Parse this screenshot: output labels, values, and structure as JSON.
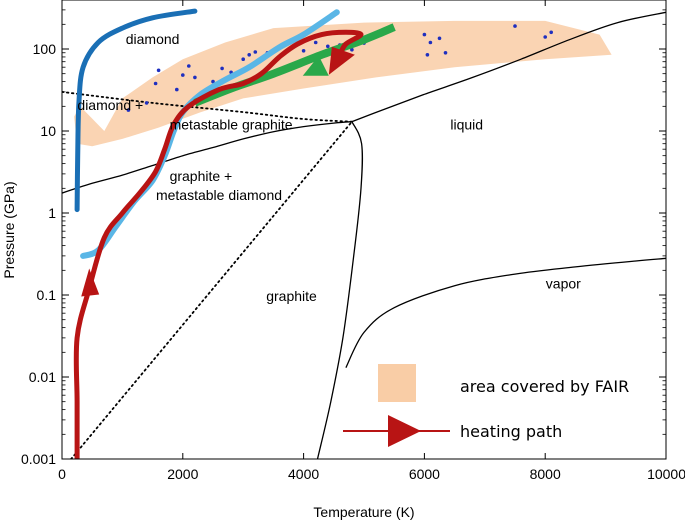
{
  "chart_data": {
    "type": "line",
    "title": "",
    "xlabel": "Temperature (K)",
    "ylabel": "Pressure (GPa)",
    "xlim": [
      0,
      10000
    ],
    "ylim": [
      0.001,
      300
    ],
    "y_scale": "log",
    "grid": false,
    "x_ticks": [
      {
        "value": 0,
        "label": "0"
      },
      {
        "value": 2000,
        "label": "2000"
      },
      {
        "value": 4000,
        "label": "4000"
      },
      {
        "value": 6000,
        "label": "6000"
      },
      {
        "value": 8000,
        "label": "8000"
      },
      {
        "value": 10000,
        "label": "10000"
      }
    ],
    "y_ticks": [
      {
        "value": 0.001,
        "label": "0.001"
      },
      {
        "value": 0.01,
        "label": "0.01"
      },
      {
        "value": 0.1,
        "label": "0.1"
      },
      {
        "value": 1,
        "label": "1"
      },
      {
        "value": 10,
        "label": "10"
      },
      {
        "value": 100,
        "label": "100"
      }
    ],
    "region_labels": [
      {
        "text": "diamond",
        "x": 1500,
        "y": 115
      },
      {
        "text": "diamond +",
        "x": 800,
        "y": 18
      },
      {
        "text": "metastable graphite",
        "x": 2800,
        "y": 10.5
      },
      {
        "text": "graphite +",
        "x": 2300,
        "y": 2.45
      },
      {
        "text": "metastable diamond",
        "x": 2600,
        "y": 1.45
      },
      {
        "text": "liquid",
        "x": 6700,
        "y": 10.5
      },
      {
        "text": "graphite",
        "x": 3800,
        "y": 0.085
      },
      {
        "text": "vapor",
        "x": 8300,
        "y": 0.12
      }
    ],
    "fair_area": {
      "color": "#f9cda6",
      "polygon": [
        [
          700,
          10
        ],
        [
          1000,
          25
        ],
        [
          1500,
          45
        ],
        [
          2000,
          75
        ],
        [
          2700,
          120
        ],
        [
          3500,
          180
        ],
        [
          5000,
          210
        ],
        [
          6500,
          220
        ],
        [
          8000,
          220
        ],
        [
          8900,
          150
        ],
        [
          9100,
          85
        ],
        [
          8000,
          75
        ],
        [
          6500,
          60
        ],
        [
          5200,
          45
        ],
        [
          4000,
          33
        ],
        [
          3000,
          25
        ],
        [
          2300,
          17
        ],
        [
          1600,
          11
        ],
        [
          1000,
          8
        ],
        [
          500,
          6.5
        ],
        [
          250,
          7
        ],
        [
          200,
          15
        ],
        [
          300,
          20
        ]
      ]
    },
    "boundaries": [
      {
        "name": "",
        "style": "solid",
        "points": [
          [
            0,
            1.75
          ],
          [
            500,
            2.3
          ],
          [
            1000,
            2.9
          ],
          [
            1500,
            3.8
          ],
          [
            2000,
            5
          ],
          [
            2500,
            6.3
          ],
          [
            3000,
            8
          ],
          [
            3500,
            9.8
          ],
          [
            4000,
            11.3
          ],
          [
            4500,
            12.5
          ],
          [
            4800,
            13
          ]
        ]
      },
      {
        "name": "",
        "style": "solid",
        "points": [
          [
            4800,
            13
          ],
          [
            5300,
            18
          ],
          [
            6000,
            28
          ],
          [
            6800,
            45
          ],
          [
            7600,
            75
          ],
          [
            8400,
            130
          ],
          [
            9200,
            210
          ],
          [
            10000,
            280
          ]
        ]
      },
      {
        "name": "",
        "style": "solid",
        "points": [
          [
            4800,
            13
          ],
          [
            4960,
            7
          ],
          [
            4950,
            2
          ],
          [
            4830,
            0.3
          ],
          [
            4650,
            0.03
          ],
          [
            4450,
            0.005
          ],
          [
            4230,
            0.001
          ]
        ]
      },
      {
        "name": "",
        "style": "solid",
        "points": [
          [
            4700,
            0.013
          ],
          [
            5000,
            0.035
          ],
          [
            5500,
            0.07
          ],
          [
            6500,
            0.13
          ],
          [
            7500,
            0.18
          ],
          [
            8500,
            0.22
          ],
          [
            9500,
            0.26
          ],
          [
            10000,
            0.28
          ]
        ]
      },
      {
        "name": "",
        "style": "dotted",
        "points": [
          [
            0,
            30
          ],
          [
            1500,
            22
          ],
          [
            3000,
            17
          ],
          [
            4000,
            14
          ],
          [
            4800,
            13
          ]
        ]
      },
      {
        "name": "",
        "style": "dotted",
        "points": [
          [
            150,
            0.001
          ],
          [
            4800,
            13
          ]
        ]
      }
    ],
    "series": [
      {
        "name": "",
        "color": "#1a6fb5",
        "width": 5,
        "points": [
          [
            250,
            1.1
          ],
          [
            260,
            5
          ],
          [
            280,
            22
          ],
          [
            350,
            60
          ],
          [
            600,
            120
          ],
          [
            1000,
            180
          ],
          [
            1500,
            240
          ],
          [
            2200,
            290
          ]
        ]
      },
      {
        "name": "",
        "color": "#5ab6e6",
        "width": 6,
        "points": [
          [
            350,
            0.3
          ],
          [
            600,
            0.35
          ],
          [
            900,
            0.7
          ],
          [
            1200,
            1.4
          ],
          [
            1500,
            2.5
          ],
          [
            1700,
            5
          ],
          [
            1850,
            10
          ],
          [
            2000,
            17
          ],
          [
            2300,
            28
          ],
          [
            2700,
            42
          ],
          [
            3100,
            60
          ],
          [
            3600,
            105
          ],
          [
            4000,
            150
          ],
          [
            4550,
            280
          ]
        ]
      },
      {
        "name": "",
        "color": "#2aa84a",
        "width": 8,
        "points": [
          [
            2200,
            22
          ],
          [
            2800,
            33
          ],
          [
            3500,
            50
          ],
          [
            4300,
            85
          ],
          [
            5000,
            130
          ],
          [
            5500,
            185
          ]
        ]
      },
      {
        "name": "heating path",
        "color": "#b81414",
        "width": 5,
        "points": [
          [
            250,
            0.001
          ],
          [
            250,
            0.005
          ],
          [
            250,
            0.03
          ],
          [
            450,
            0.12
          ],
          [
            700,
            0.5
          ],
          [
            1000,
            1
          ],
          [
            1300,
            1.8
          ],
          [
            1550,
            3.2
          ],
          [
            1700,
            6
          ],
          [
            1850,
            12
          ],
          [
            2100,
            20
          ],
          [
            2600,
            32
          ],
          [
            3000,
            38
          ],
          [
            3300,
            50
          ],
          [
            3600,
            80
          ],
          [
            3900,
            115
          ],
          [
            4300,
            150
          ],
          [
            4700,
            160
          ],
          [
            4950,
            150
          ],
          [
            4700,
            115
          ],
          [
            4600,
            85
          ]
        ]
      }
    ],
    "arrows": [
      {
        "x": 500,
        "y": 0.12,
        "dir": "up"
      },
      {
        "x": 4650,
        "y": 90,
        "dir": "down-left"
      },
      {
        "x": 4450,
        "y": 70,
        "dir": "green-head"
      }
    ],
    "scatter": {
      "color": "#1f2fbf",
      "points": [
        [
          1100,
          18
        ],
        [
          1400,
          22
        ],
        [
          1550,
          38
        ],
        [
          1600,
          55
        ],
        [
          1900,
          32
        ],
        [
          2000,
          48
        ],
        [
          2100,
          62
        ],
        [
          2200,
          45
        ],
        [
          2500,
          40
        ],
        [
          2650,
          58
        ],
        [
          2800,
          52
        ],
        [
          3000,
          75
        ],
        [
          3100,
          85
        ],
        [
          3200,
          92
        ],
        [
          3400,
          90
        ],
        [
          3600,
          80
        ],
        [
          3800,
          105
        ],
        [
          4000,
          95
        ],
        [
          4200,
          120
        ],
        [
          4400,
          108
        ],
        [
          4600,
          112
        ],
        [
          4800,
          98
        ],
        [
          5000,
          118
        ],
        [
          6000,
          150
        ],
        [
          6100,
          120
        ],
        [
          6250,
          135
        ],
        [
          6350,
          90
        ],
        [
          6050,
          85
        ],
        [
          7500,
          190
        ],
        [
          8000,
          140
        ],
        [
          8100,
          160
        ]
      ]
    },
    "legend": {
      "position": "bottom-right",
      "items": [
        {
          "label": "area covered by FAIR",
          "kind": "swatch",
          "color": "#f9cda6"
        },
        {
          "label": "heating path",
          "kind": "arrow",
          "color": "#b81414"
        }
      ]
    }
  }
}
